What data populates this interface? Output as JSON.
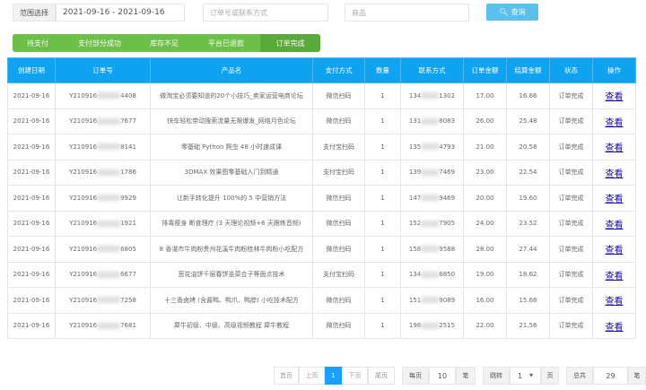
{
  "filters": {
    "range_label": "范围选择",
    "date_range": "2021-09-16 - 2021-09-16",
    "order_placeholder": "订单号或联系方式",
    "product_placeholder": "商品",
    "query_label": "查询",
    "query_icon": "search-icon"
  },
  "tabs": [
    {
      "label": "待支付"
    },
    {
      "label": "支付部分成功"
    },
    {
      "label": "库存不足"
    },
    {
      "label": "平台已退款"
    },
    {
      "label": "订单完成",
      "active": true
    }
  ],
  "table": {
    "headers": [
      "创建日期",
      "订单号",
      "产品名",
      "支付方式",
      "数量",
      "联系方式",
      "订单金额",
      "结算金额",
      "状态",
      "操作"
    ],
    "rows": [
      {
        "date": "2021-09-16",
        "order_prefix": "Y210916",
        "order_suffix": "4408",
        "product": "做淘宝必须要知道的20个小技巧_卖家运营电商论坛",
        "pay": "微信扫码",
        "qty": "1",
        "phone_prefix": "134",
        "phone_suffix": "1302",
        "amount": "17.00",
        "settle": "16.66",
        "status": "订单完成",
        "action": "查看"
      },
      {
        "date": "2021-09-16",
        "order_prefix": "Y210916",
        "order_suffix": "7677",
        "product": "快车轻松带动搜索流量无限爆发_网络月色论坛",
        "pay": "微信扫码",
        "qty": "1",
        "phone_prefix": "131",
        "phone_suffix": "8083",
        "amount": "26.00",
        "settle": "25.48",
        "status": "订单完成",
        "action": "查看"
      },
      {
        "date": "2021-09-16",
        "order_prefix": "Y210916",
        "order_suffix": "8141",
        "product": "零基础 Python 爬虫 48 小时速成课",
        "pay": "支付宝扫码",
        "qty": "1",
        "phone_prefix": "135",
        "phone_suffix": "4793",
        "amount": "21.00",
        "settle": "20.58",
        "status": "订单完成",
        "action": "查看"
      },
      {
        "date": "2021-09-16",
        "order_prefix": "Y210916",
        "order_suffix": "1786",
        "product": "3DMAX 效果图零基础入门到精通",
        "pay": "支付宝扫码",
        "qty": "1",
        "phone_prefix": "139",
        "phone_suffix": "7469",
        "amount": "23.00",
        "settle": "22.54",
        "status": "订单完成",
        "action": "查看"
      },
      {
        "date": "2021-09-16",
        "order_prefix": "Y210916",
        "order_suffix": "9929",
        "product": "让新手转化提升 100%的 5 中营销方法",
        "pay": "微信扫码",
        "qty": "1",
        "phone_prefix": "147",
        "phone_suffix": "9469",
        "amount": "20.00",
        "settle": "19.60",
        "status": "订单完成",
        "action": "查看"
      },
      {
        "date": "2021-09-16",
        "order_prefix": "Y210916",
        "order_suffix": "1921",
        "product": "排毒瘦身 断食理疗 (3 天理论视频+6 天跟练音频)",
        "pay": "微信扫码",
        "qty": "1",
        "phone_prefix": "152",
        "phone_suffix": "7905",
        "amount": "24.00",
        "settle": "23.52",
        "status": "订单完成",
        "action": "查看"
      },
      {
        "date": "2021-09-16",
        "order_prefix": "Y210916",
        "order_suffix": "6805",
        "product": "8 香湛市牛肉粉贵州花溪牛肉粉桂林牛肉粉小吃配方",
        "pay": "微信扫码",
        "qty": "1",
        "phone_prefix": "158",
        "phone_suffix": "9588",
        "amount": "28.00",
        "settle": "27.44",
        "status": "订单完成",
        "action": "查看"
      },
      {
        "date": "2021-09-16",
        "order_prefix": "Y210916",
        "order_suffix": "6677",
        "product": "葱花油饼千层春饼韭菜合子等面点技术",
        "pay": "支付宝扫码",
        "qty": "1",
        "phone_prefix": "134",
        "phone_suffix": "6850",
        "amount": "19.00",
        "settle": "18.62",
        "status": "订单完成",
        "action": "查看"
      },
      {
        "date": "2021-09-16",
        "order_prefix": "Y210916",
        "order_suffix": "7258",
        "product": "十三香卤烤 (含酱鸭、鸭爪、鸭脖) 小吃技术配方",
        "pay": "微信扫码",
        "qty": "1",
        "phone_prefix": "151",
        "phone_suffix": "9089",
        "amount": "16.00",
        "settle": "15.68",
        "status": "订单完成",
        "action": "查看"
      },
      {
        "date": "2021-09-16",
        "order_prefix": "Y210916",
        "order_suffix": "7681",
        "product": "犀牛初级、中级、高级视频教程 犀牛教程",
        "pay": "微信扫码",
        "qty": "1",
        "phone_prefix": "198",
        "phone_suffix": "2515",
        "amount": "22.00",
        "settle": "21.56",
        "status": "订单完成",
        "action": "查看"
      }
    ]
  },
  "pagination": {
    "first": "首页",
    "prev": "上页",
    "current": "1",
    "next": "下页",
    "last": "尾页",
    "per_page_label": "每页",
    "per_page": "10",
    "unit": "笔",
    "jump_label": "跳转",
    "jump_value": "1",
    "page_unit": "页",
    "total_label": "总共",
    "total": "29",
    "total_unit": "笔"
  },
  "colors": {
    "header": "#0fa2f0",
    "tabs": "#6cc04a",
    "query": "#5bc0eb",
    "current_page": "#1e9fff"
  }
}
